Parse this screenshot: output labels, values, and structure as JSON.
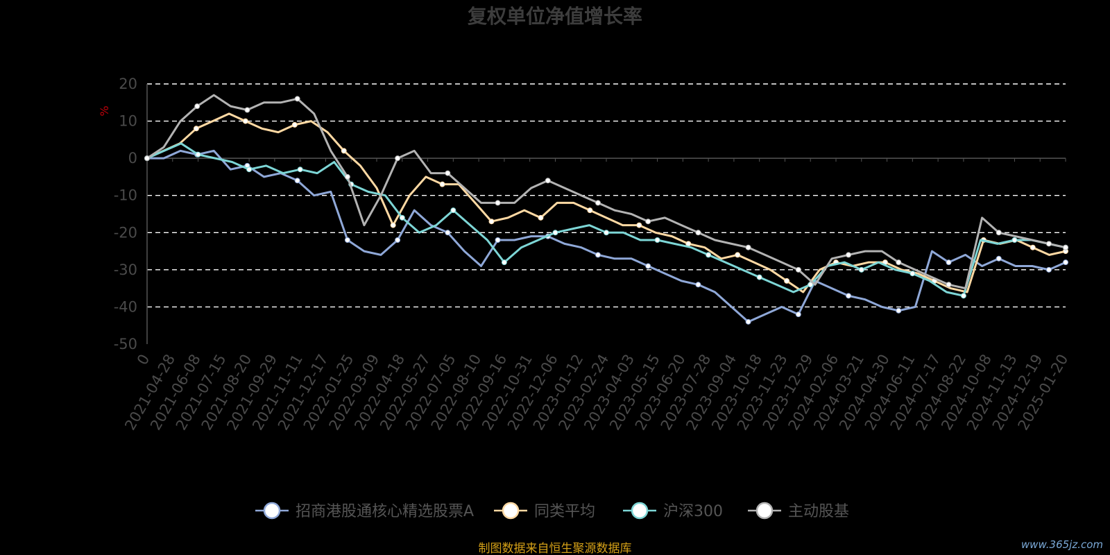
{
  "chart_data": {
    "type": "line",
    "title": "复权单位净值增长率",
    "ylabel": "%",
    "ylim": [
      -50,
      20
    ],
    "yticks": [
      20,
      10,
      0,
      -10,
      -20,
      -30,
      -40,
      -50
    ],
    "grid": true,
    "legend_position": "bottom",
    "x_tick_labels": [
      "0",
      "2021-04-28",
      "2021-06-08",
      "2021-07-15",
      "2021-08-20",
      "2021-09-29",
      "2021-11-11",
      "2021-12-17",
      "2022-01-25",
      "2022-03-09",
      "2022-04-18",
      "2022-05-27",
      "2022-07-05",
      "2022-08-10",
      "2022-09-16",
      "2022-10-31",
      "2022-12-06",
      "2023-01-12",
      "2023-02-24",
      "2023-04-03",
      "2023-05-15",
      "2023-06-20",
      "2023-07-28",
      "2023-09-04",
      "2023-10-18",
      "2023-11-23",
      "2023-12-29",
      "2024-02-06",
      "2024-03-21",
      "2024-04-30",
      "2024-06-11",
      "2024-07-17",
      "2024-08-22",
      "2024-10-08",
      "2024-11-13",
      "2024-12-19",
      "2025-01-20"
    ],
    "series": [
      {
        "name": "招商港股通核心精选股票A",
        "color": "#8fa8d8",
        "values": [
          0,
          0,
          2,
          1,
          2,
          -3,
          -2,
          -5,
          -4,
          -6,
          -10,
          -9,
          -22,
          -25,
          -26,
          -22,
          -14,
          -18,
          -20,
          -25,
          -29,
          -22,
          -22,
          -21,
          -21,
          -23,
          -24,
          -26,
          -27,
          -27,
          -29,
          -31,
          -33,
          -34,
          -36,
          -40,
          -44,
          -42,
          -40,
          -42,
          -33,
          -35,
          -37,
          -38,
          -40,
          -41,
          -40,
          -25,
          -28,
          -26,
          -29,
          -27,
          -29,
          -29,
          -30,
          -28
        ]
      },
      {
        "name": "同类平均",
        "color": "#ffd9a3",
        "values": [
          0,
          2,
          4,
          8,
          10,
          12,
          10,
          8,
          7,
          9,
          10,
          7,
          2,
          -2,
          -8,
          -18,
          -10,
          -5,
          -7,
          -7,
          -12,
          -17,
          -16,
          -14,
          -16,
          -12,
          -12,
          -14,
          -16,
          -18,
          -18,
          -20,
          -21,
          -23,
          -24,
          -27,
          -26,
          -28,
          -30,
          -33,
          -36,
          -30,
          -28,
          -29,
          -28,
          -28,
          -30,
          -31,
          -33,
          -35,
          -36,
          -22,
          -23,
          -22,
          -24,
          -26,
          -25
        ]
      },
      {
        "name": "沪深300",
        "color": "#7dd6d6",
        "values": [
          0,
          2,
          4,
          1,
          0,
          -1,
          -3,
          -2,
          -4,
          -3,
          -4,
          -1,
          -7,
          -9,
          -10,
          -16,
          -20,
          -18,
          -14,
          -18,
          -22,
          -28,
          -24,
          -22,
          -20,
          -19,
          -18,
          -20,
          -20,
          -22,
          -22,
          -23,
          -24,
          -26,
          -28,
          -30,
          -32,
          -34,
          -36,
          -34,
          -29,
          -28,
          -30,
          -28,
          -30,
          -31,
          -33,
          -36,
          -37,
          -22,
          -23,
          -22,
          -22,
          -23,
          -24
        ]
      },
      {
        "name": "主动股基",
        "color": "#b3b3b3",
        "values": [
          0,
          3,
          10,
          14,
          17,
          14,
          13,
          15,
          15,
          16,
          12,
          2,
          -5,
          -18,
          -10,
          0,
          2,
          -4,
          -4,
          -8,
          -12,
          -12,
          -12,
          -8,
          -6,
          -8,
          -10,
          -12,
          -14,
          -15,
          -17,
          -16,
          -18,
          -20,
          -22,
          -23,
          -24,
          -26,
          -28,
          -30,
          -34,
          -27,
          -26,
          -25,
          -25,
          -28,
          -30,
          -32,
          -34,
          -35,
          -16,
          -20,
          -21,
          -22,
          -23,
          -24
        ]
      }
    ]
  },
  "source": "制图数据来自恒生聚源数据库",
  "watermark": "www.365jz.com"
}
